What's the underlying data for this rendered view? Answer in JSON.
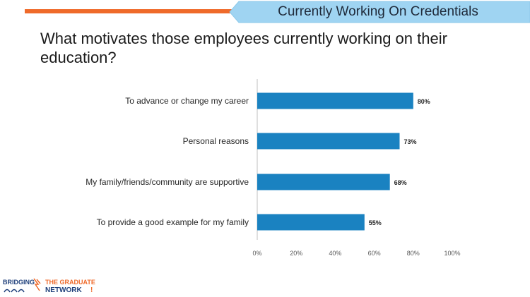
{
  "header": {
    "tab_label": "Currently Working On Credentials",
    "orange_color": "#ef6a2a",
    "tab_color": "#9fd4f2"
  },
  "slide": {
    "title": "What motivates those employees currently working on their education?"
  },
  "logo": {
    "left_text": "BRIDGING",
    "right_line1": "THE GRADUATE",
    "right_line2": "NETWORK"
  },
  "chart_data": {
    "type": "bar",
    "orientation": "horizontal",
    "categories": [
      "To advance or change my career",
      "Personal reasons",
      "My family/friends/community are supportive",
      "To provide a good example for my family"
    ],
    "values": [
      80,
      73,
      68,
      55
    ],
    "data_labels": [
      "80%",
      "73%",
      "68%",
      "55%"
    ],
    "xlim": [
      0,
      100
    ],
    "xticks": [
      "0%",
      "20%",
      "40%",
      "60%",
      "80%",
      "100%"
    ],
    "grid": false,
    "bar_color": "#1a82c1",
    "title": "",
    "xlabel": "",
    "ylabel": ""
  }
}
